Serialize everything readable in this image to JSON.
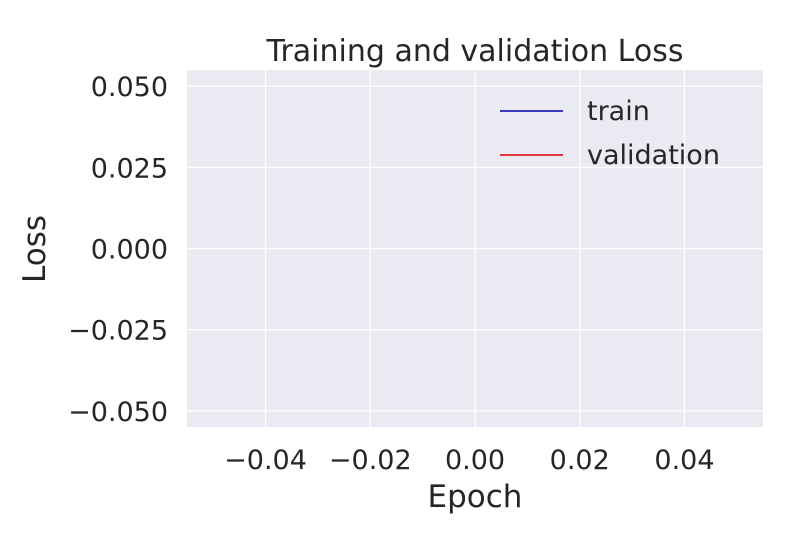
{
  "chart_data": {
    "type": "line",
    "title": "Training and validation  Loss",
    "xlabel": "Epoch",
    "ylabel": "Loss",
    "xlim": [
      -0.055,
      0.055
    ],
    "ylim": [
      -0.055,
      0.055
    ],
    "xticks": [
      -0.04,
      -0.02,
      0.0,
      0.02,
      0.04
    ],
    "xtick_labels": [
      "−0.04",
      "−0.02",
      "0.00",
      "0.02",
      "0.04"
    ],
    "yticks": [
      -0.05,
      -0.025,
      0.0,
      0.025,
      0.05
    ],
    "ytick_labels": [
      "−0.050",
      "−0.025",
      "0.000",
      "0.025",
      "0.050"
    ],
    "grid": true,
    "background": "#eaeaf2",
    "grid_color": "#ffffff",
    "legend_position": "upper-right",
    "series": [
      {
        "name": "train",
        "color": "#0000aa",
        "x": [],
        "y": []
      },
      {
        "name": "validation",
        "color": "#dd0000",
        "x": [],
        "y": []
      }
    ]
  }
}
